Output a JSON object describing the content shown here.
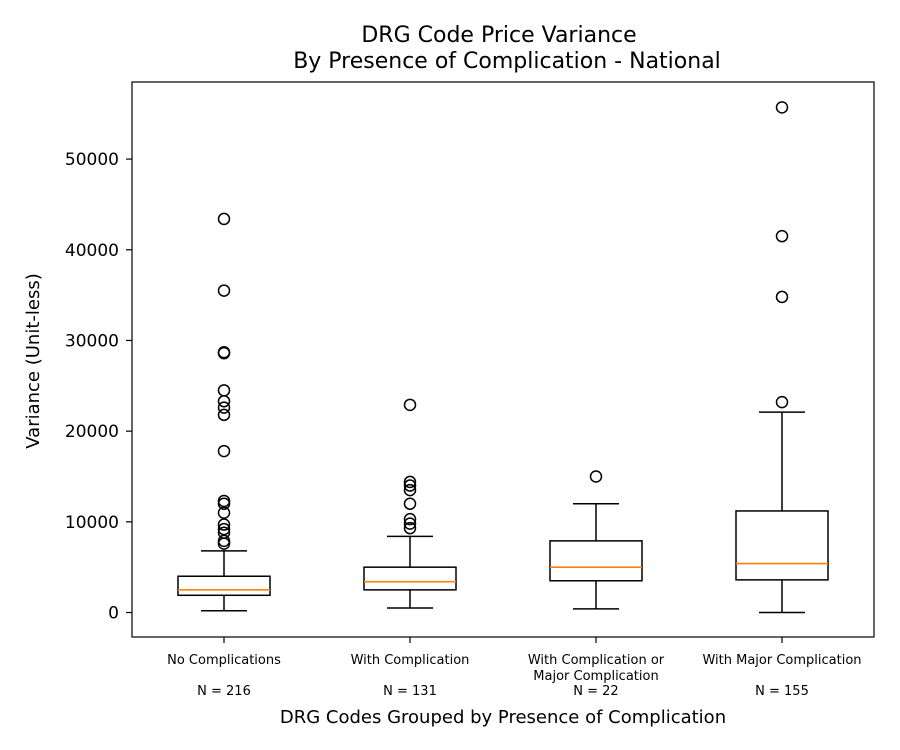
{
  "chart_data": {
    "type": "box",
    "title": [
      "DRG Code Price Variance",
      "By Presence of Complication - National"
    ],
    "xlabel": "DRG Codes Grouped by Presence of Complication",
    "ylabel": "Variance (Unit-less)",
    "ylim": [
      -2700,
      58500
    ],
    "yticks": [
      0,
      10000,
      20000,
      30000,
      40000,
      50000
    ],
    "grid": false,
    "box_color": "#000000",
    "median_color": "#ff7f0e",
    "groups": [
      {
        "label": [
          "No Complications"
        ],
        "n_label": "N = 216",
        "whisker_low": 200,
        "q1": 1900,
        "median": 2500,
        "q3": 4000,
        "whisker_high": 6800,
        "outliers": [
          7600,
          7900,
          8800,
          9200,
          9700,
          11000,
          12000,
          12300,
          17800,
          21800,
          22600,
          23300,
          24500,
          28600,
          28700,
          35500,
          43400
        ]
      },
      {
        "label": [
          "With Complication"
        ],
        "n_label": "N = 131",
        "whisker_low": 500,
        "q1": 2500,
        "median": 3400,
        "q3": 5000,
        "whisker_high": 8400,
        "outliers": [
          9300,
          9800,
          10300,
          12000,
          13500,
          14000,
          14400,
          22900
        ]
      },
      {
        "label": [
          "With Complication or",
          "Major Complication"
        ],
        "n_label": "N = 22",
        "whisker_low": 400,
        "q1": 3500,
        "median": 5000,
        "q3": 7900,
        "whisker_high": 12000,
        "outliers": [
          15000
        ]
      },
      {
        "label": [
          "With Major Complication"
        ],
        "n_label": "N = 155",
        "whisker_low": 0,
        "q1": 3600,
        "median": 5400,
        "q3": 11200,
        "whisker_high": 22100,
        "outliers": [
          23200,
          34800,
          41500,
          55700
        ]
      }
    ]
  }
}
